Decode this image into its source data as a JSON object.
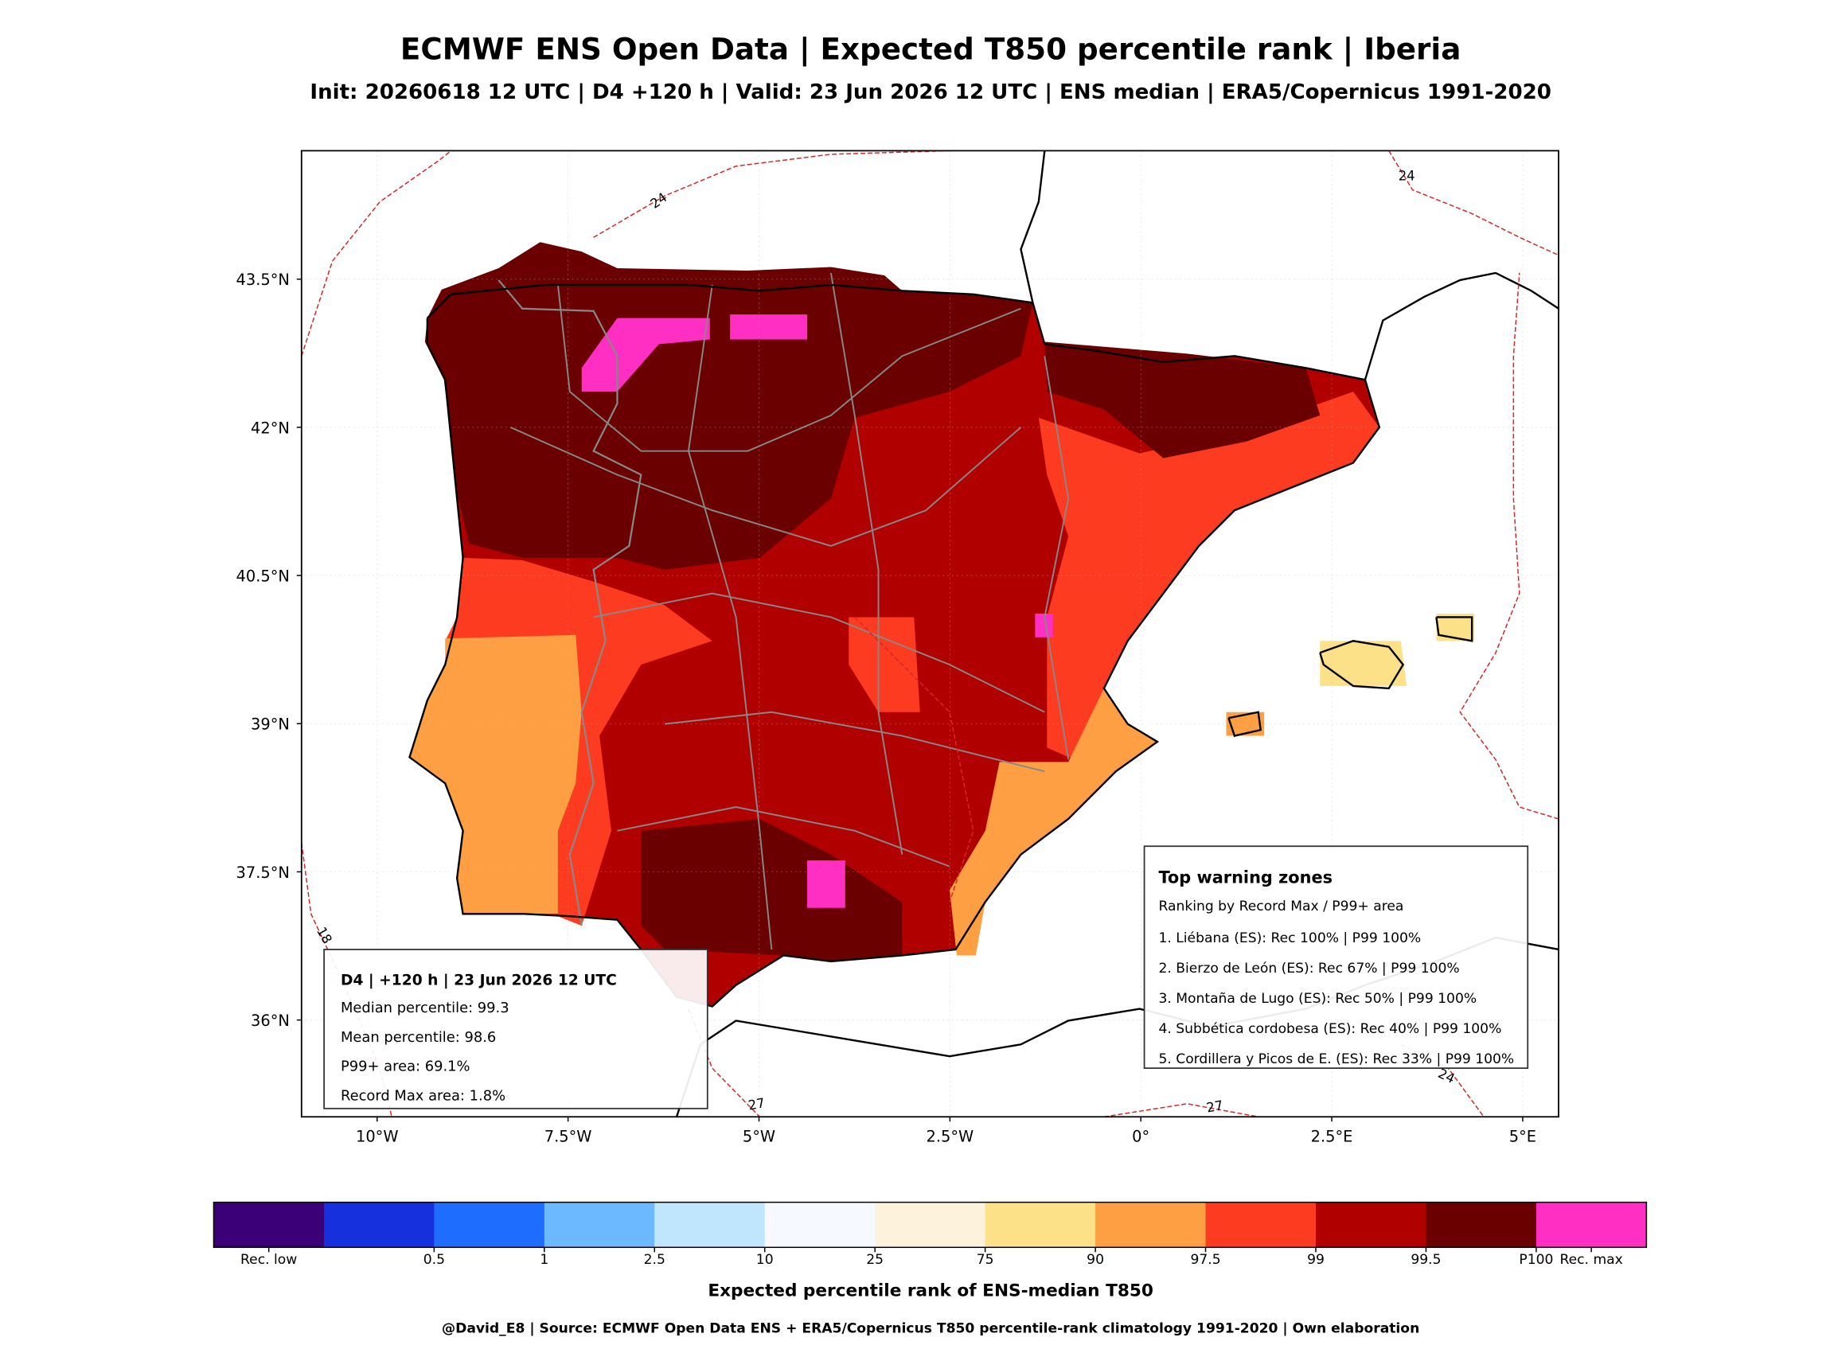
{
  "header": {
    "title": "ECMWF ENS Open Data | Expected T850 percentile rank | Iberia",
    "subtitle": "Init: 20260618 12 UTC | D4 +120 h | Valid: 23 Jun 2026 12 UTC | ENS median | ERA5/Copernicus 1991-2020"
  },
  "map": {
    "lon_lim": [
      -10.99,
      5.47
    ],
    "lat_lim": [
      35.02,
      44.8
    ],
    "lon_ticks": [
      {
        "value": -10,
        "label": "10°W"
      },
      {
        "value": -7.5,
        "label": "7.5°W"
      },
      {
        "value": -5,
        "label": "5°W"
      },
      {
        "value": -2.5,
        "label": "2.5°W"
      },
      {
        "value": 0,
        "label": "0°"
      },
      {
        "value": 2.5,
        "label": "2.5°E"
      },
      {
        "value": 5,
        "label": "5°E"
      }
    ],
    "lat_ticks": [
      {
        "value": 36,
        "label": "36°N"
      },
      {
        "value": 37.5,
        "label": "37.5°N"
      },
      {
        "value": 39,
        "label": "39°N"
      },
      {
        "value": 40.5,
        "label": "40.5°N"
      },
      {
        "value": 42,
        "label": "42°N"
      },
      {
        "value": 43.5,
        "label": "43.5°N"
      }
    ],
    "grid": true,
    "contour_labels": [
      24,
      24,
      24,
      27,
      27,
      18
    ]
  },
  "info_box": {
    "title": "D4 | +120 h | 23 Jun 2026 12 UTC",
    "lines": [
      "Median percentile: 99.3",
      "Mean percentile: 98.6",
      "P99+ area: 69.1%",
      "Record Max area: 1.8%"
    ]
  },
  "warning_box": {
    "title": "Top warning zones",
    "subtitle": "Ranking by Record Max / P99+ area",
    "items": [
      "1. Liébana (ES): Rec 100% | P99 100%",
      "2. Bierzo de León (ES): Rec 67% | P99 100%",
      "3. Montaña de Lugo (ES): Rec 50% | P99 100%",
      "4. Subbética cordobesa (ES): Rec 40% | P99 100%",
      "5. Cordillera y Picos de E. (ES): Rec 33% | P99 100%"
    ]
  },
  "colorbar": {
    "colors": [
      "#3b0078",
      "#1530dc",
      "#1f6dff",
      "#6cb9ff",
      "#c0e6fe",
      "#f6f9ff",
      "#fdf3dc",
      "#fde188",
      "#fd9f42",
      "#fd3b21",
      "#b10000",
      "#6a0000",
      "#ff2fc3"
    ],
    "ticks": [
      "Rec. low",
      0.5,
      1,
      2.5,
      10,
      25,
      75,
      90,
      97.5,
      99,
      99.5,
      "P100",
      "Rec. max"
    ],
    "title": "Expected percentile rank of ENS-median T850"
  },
  "footer": "@David_E8 | Source: ECMWF Open Data ENS + ERA5/Copernicus T850 percentile-rank climatology 1991-2020 | Own elaboration"
}
